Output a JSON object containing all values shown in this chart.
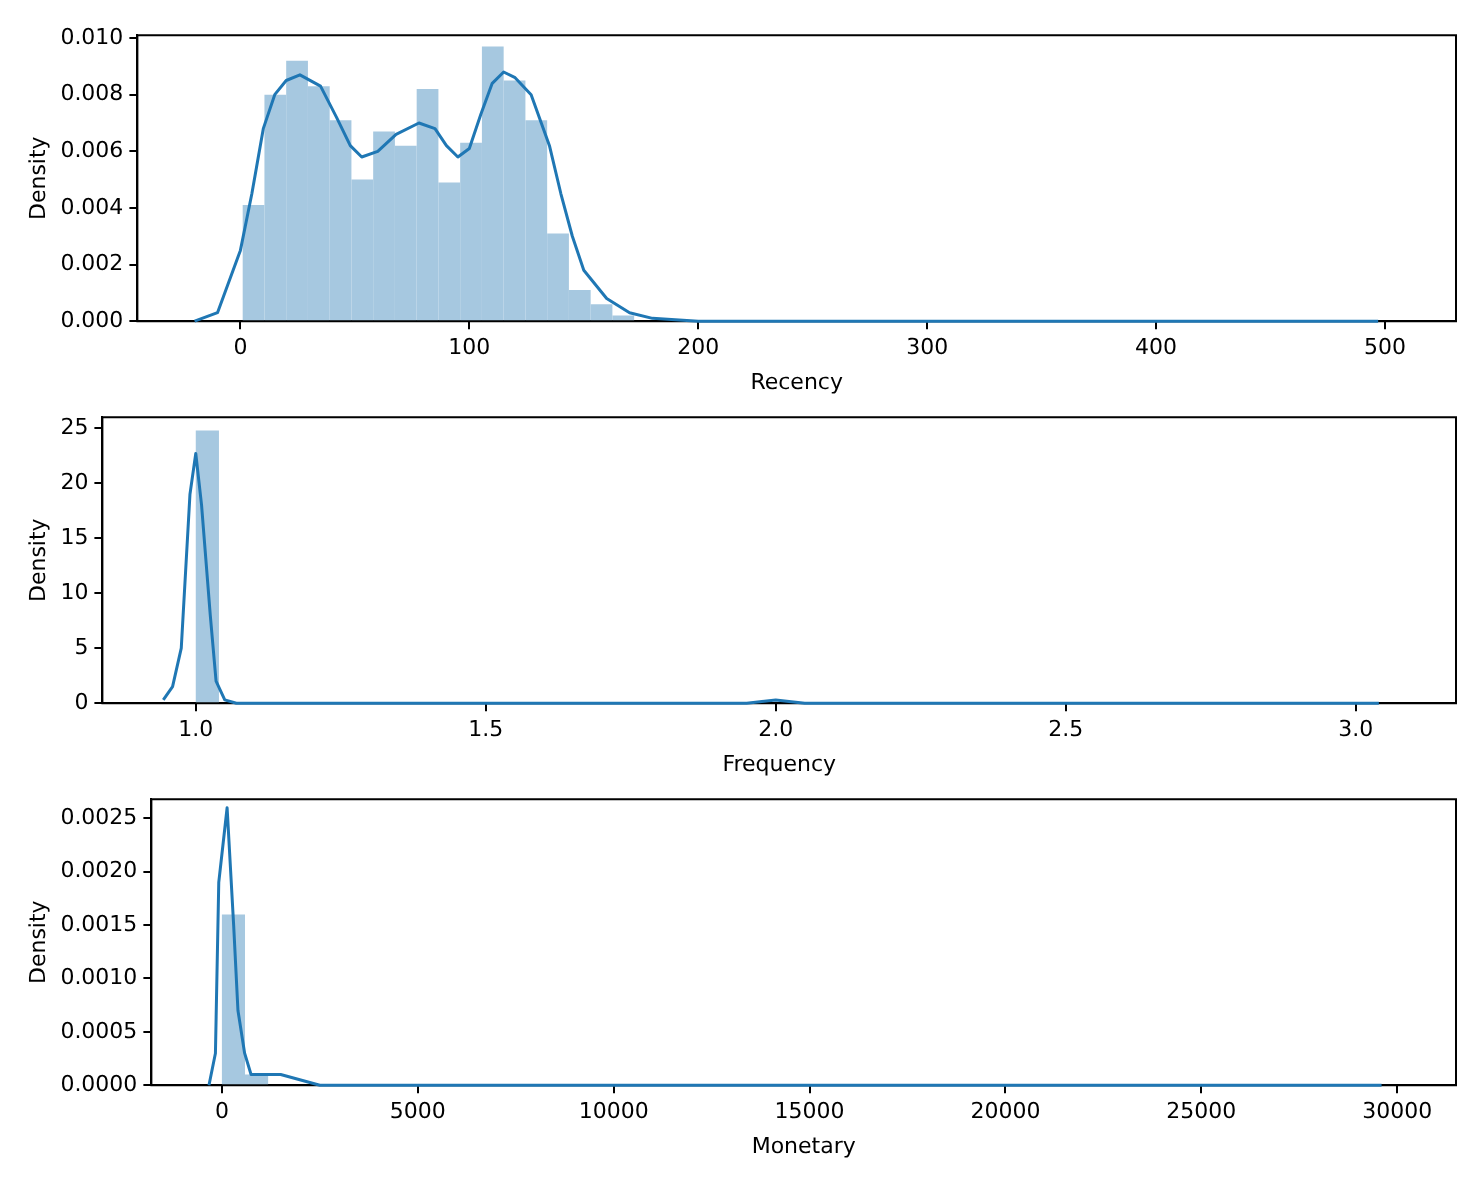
{
  "chart_data": [
    {
      "type": "histogram",
      "xlabel": "Recency",
      "ylabel": "Density",
      "bins": [
        1,
        10.5,
        20,
        29.5,
        39,
        48.5,
        58,
        67.5,
        77,
        86.5,
        96,
        105.5,
        115,
        124.5,
        134,
        143.5,
        153,
        162.5,
        172
      ],
      "values": [
        0.0041,
        0.008,
        0.0092,
        0.0083,
        0.0071,
        0.005,
        0.0067,
        0.0062,
        0.0082,
        0.0049,
        0.0063,
        0.0097,
        0.0085,
        0.0071,
        0.0031,
        0.0011,
        0.0006,
        0.0002
      ],
      "color": "#a6c8e0",
      "series": [
        {
          "type": "line",
          "color": "#1f77b4",
          "x": [
            -20,
            -10,
            0,
            5,
            10,
            15,
            20,
            26,
            35,
            42,
            48,
            53,
            60,
            68,
            78,
            85,
            90,
            95,
            100,
            105,
            110,
            115,
            120,
            127,
            135,
            140,
            145,
            150,
            160,
            170,
            180,
            200,
            240,
            300,
            400,
            497
          ],
          "values": [
            0,
            0.0003,
            0.0025,
            0.0045,
            0.0068,
            0.008,
            0.0085,
            0.0087,
            0.0083,
            0.0072,
            0.0062,
            0.0058,
            0.006,
            0.0066,
            0.007,
            0.0068,
            0.0062,
            0.0058,
            0.0061,
            0.0073,
            0.0084,
            0.0088,
            0.0086,
            0.008,
            0.0062,
            0.0045,
            0.003,
            0.0018,
            0.0008,
            0.0003,
            0.0001,
            0,
            0,
            0,
            0,
            0
          ]
        }
      ],
      "xlim": [
        -45,
        531
      ],
      "ylim": [
        0,
        0.0101
      ],
      "xticks": [
        0,
        100,
        200,
        300,
        400,
        500
      ],
      "yticks": [
        {
          "value": 0,
          "label": "0.000"
        },
        {
          "value": 0.002,
          "label": "0.002"
        },
        {
          "value": 0.004,
          "label": "0.004"
        },
        {
          "value": 0.006,
          "label": "0.006"
        },
        {
          "value": 0.008,
          "label": "0.008"
        },
        {
          "value": 0.01,
          "label": "0.010"
        }
      ],
      "grid": false,
      "legend": false
    },
    {
      "type": "histogram",
      "xlabel": "Frequency",
      "ylabel": "Density",
      "bins": [
        1,
        1.04
      ],
      "values": [
        24.8
      ],
      "color": "#a6c8e0",
      "series": [
        {
          "type": "line",
          "color": "#1f77b4",
          "x": [
            0.944,
            0.96,
            0.975,
            0.99,
            1.0,
            1.01,
            1.025,
            1.035,
            1.05,
            1.07,
            1.5,
            1.95,
            2.0,
            2.05,
            3.04
          ],
          "values": [
            0.3,
            1.5,
            5,
            19,
            22.7,
            18,
            8,
            2,
            0.3,
            0,
            0,
            0,
            0.3,
            0,
            0
          ]
        }
      ],
      "xlim": [
        0.839,
        3.173
      ],
      "ylim": [
        0,
        26
      ],
      "xticks": [
        {
          "value": 1,
          "label": "1.0"
        },
        {
          "value": 1.5,
          "label": "1.5"
        },
        {
          "value": 2,
          "label": "2.0"
        },
        {
          "value": 2.5,
          "label": "2.5"
        },
        {
          "value": 3,
          "label": "3.0"
        }
      ],
      "yticks": [
        0,
        5,
        10,
        15,
        20,
        25
      ],
      "grid": false,
      "legend": false
    },
    {
      "type": "histogram",
      "xlabel": "Monetary",
      "ylabel": "Density",
      "bins": [
        0,
        590,
        1180
      ],
      "values": [
        0.0016,
        0.0001
      ],
      "color": "#a6c8e0",
      "series": [
        {
          "type": "line",
          "color": "#1f77b4",
          "x": [
            -330,
            -165,
            -80,
            133,
            300,
            410,
            580,
            744,
            1500,
            2500,
            5000,
            29600
          ],
          "values": [
            0,
            0.0003,
            0.0019,
            0.0026,
            0.0015,
            0.0007,
            0.0003,
            0.0001,
            0.0001,
            0,
            0,
            0
          ]
        }
      ],
      "xlim": [
        -1800,
        31500
      ],
      "ylim": [
        0,
        0.00268
      ],
      "xticks": [
        0,
        5000,
        10000,
        15000,
        20000,
        25000,
        30000
      ],
      "yticks": [
        {
          "value": 0,
          "label": "0.0000"
        },
        {
          "value": 0.0005,
          "label": "0.0005"
        },
        {
          "value": 0.001,
          "label": "0.0010"
        },
        {
          "value": 0.0015,
          "label": "0.0015"
        },
        {
          "value": 0.002,
          "label": "0.0020"
        },
        {
          "value": 0.0025,
          "label": "0.0025"
        }
      ],
      "grid": false,
      "legend": false
    }
  ]
}
